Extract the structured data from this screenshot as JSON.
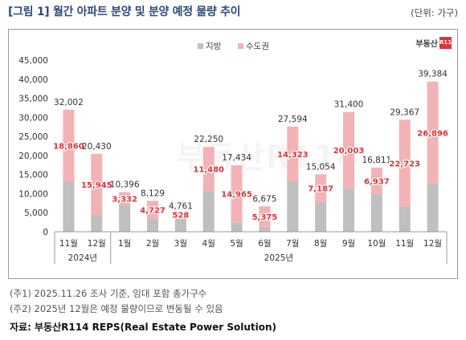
{
  "title": "[그림 1] 월간 아파트 분양 및 분양 예정 물량 추이",
  "unit": "(단위: 가구)",
  "brand": {
    "text": "부동산",
    "box": "R114"
  },
  "watermark": "부동산R114",
  "footnotes": [
    "(주1) 2025.11.26 조사 기준, 임대 포함 총가구수",
    "(주2) 2025년 12월은 예정 물량이므로 변동될 수 있음"
  ],
  "source": "자료: 부동산R114 REPS(Real Estate Power Solution)",
  "colors": {
    "local": "#bfbfbf",
    "capital": "#f2b3b6",
    "capital_label": "#d9353b",
    "total_label": "#333333"
  },
  "chart_data": {
    "type": "bar",
    "stacked": true,
    "categories": [
      "11월",
      "12월",
      "1월",
      "2월",
      "3월",
      "4월",
      "5월",
      "6월",
      "7월",
      "8월",
      "9월",
      "10월",
      "11월",
      "12월"
    ],
    "year_groups": [
      {
        "label": "2024년",
        "start": 0,
        "end": 1
      },
      {
        "label": "2025년",
        "start": 2,
        "end": 13
      }
    ],
    "series": [
      {
        "name": "지방",
        "values": [
          13142,
          4485,
          7064,
          3402,
          4233,
          10770,
          2469,
          1300,
          13271,
          7867,
          11397,
          9874,
          6644,
          12488
        ]
      },
      {
        "name": "수도권",
        "values": [
          18860,
          15945,
          3332,
          4727,
          528,
          11480,
          14965,
          5375,
          14323,
          7187,
          20003,
          6937,
          22723,
          26896
        ]
      }
    ],
    "capital_labels": [
      "18,860",
      "15,945",
      "3,332",
      "4,727",
      "528",
      "11,480",
      "14,965",
      "5,375",
      "14,323",
      "7,187",
      "20,003",
      "6,937",
      "22,723",
      "26,896"
    ],
    "totals": [
      "32,002",
      "20,430",
      "10,396",
      "8,129",
      "4,761",
      "22,250",
      "17,434",
      "6,675",
      "27,594",
      "15,054",
      "31,400",
      "16,811",
      "29,367",
      "39,384"
    ],
    "yticks": [
      "0",
      "5,000",
      "10,000",
      "15,000",
      "20,000",
      "25,000",
      "30,000",
      "35,000",
      "40,000",
      "45,000"
    ],
    "ylim": [
      0,
      45000
    ],
    "legend_position": "top-center",
    "grid": false
  }
}
